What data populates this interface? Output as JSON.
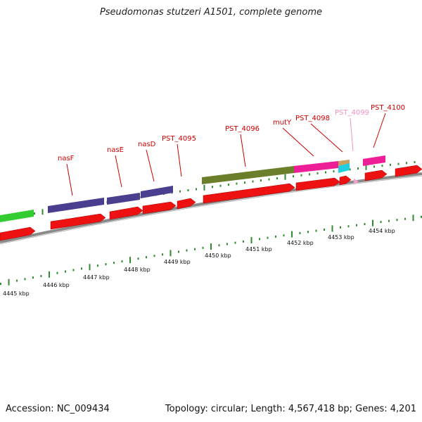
{
  "title": "Pseudomonas stutzeri A1501, complete genome",
  "footer": {
    "accession": "Accession: NC_009434",
    "summary": "Topology: circular; Length: 4,567,418 bp; Genes: 4,201"
  },
  "colors": {
    "cds_red": "#ee1111",
    "backbone": "#8a8a8a",
    "tick": "#2e8b2e",
    "label_red": "#cc0000",
    "label_pink": "#f090c0",
    "nas_blue": "#4a3f8f",
    "olive": "#6b7f2a",
    "magenta": "#ee1e96",
    "tan": "#c8a060",
    "cyan": "#20d0e0",
    "green": "#33cc33"
  },
  "gene_labels": [
    {
      "name": "nasF",
      "color": "red"
    },
    {
      "name": "nasE",
      "color": "red"
    },
    {
      "name": "nasD",
      "color": "red"
    },
    {
      "name": "PST_4095",
      "color": "red"
    },
    {
      "name": "PST_4096",
      "color": "red"
    },
    {
      "name": "mutY",
      "color": "red"
    },
    {
      "name": "PST_4098",
      "color": "red"
    },
    {
      "name": "PST_4099",
      "color": "pink"
    },
    {
      "name": "PST_4100",
      "color": "red"
    }
  ],
  "kbp_labels": [
    "4445 kbp",
    "4446 kbp",
    "4447 kbp",
    "4448 kbp",
    "4449 kbp",
    "4450 kbp",
    "4451 kbp",
    "4452 kbp",
    "4453 kbp",
    "4454 kbp"
  ]
}
